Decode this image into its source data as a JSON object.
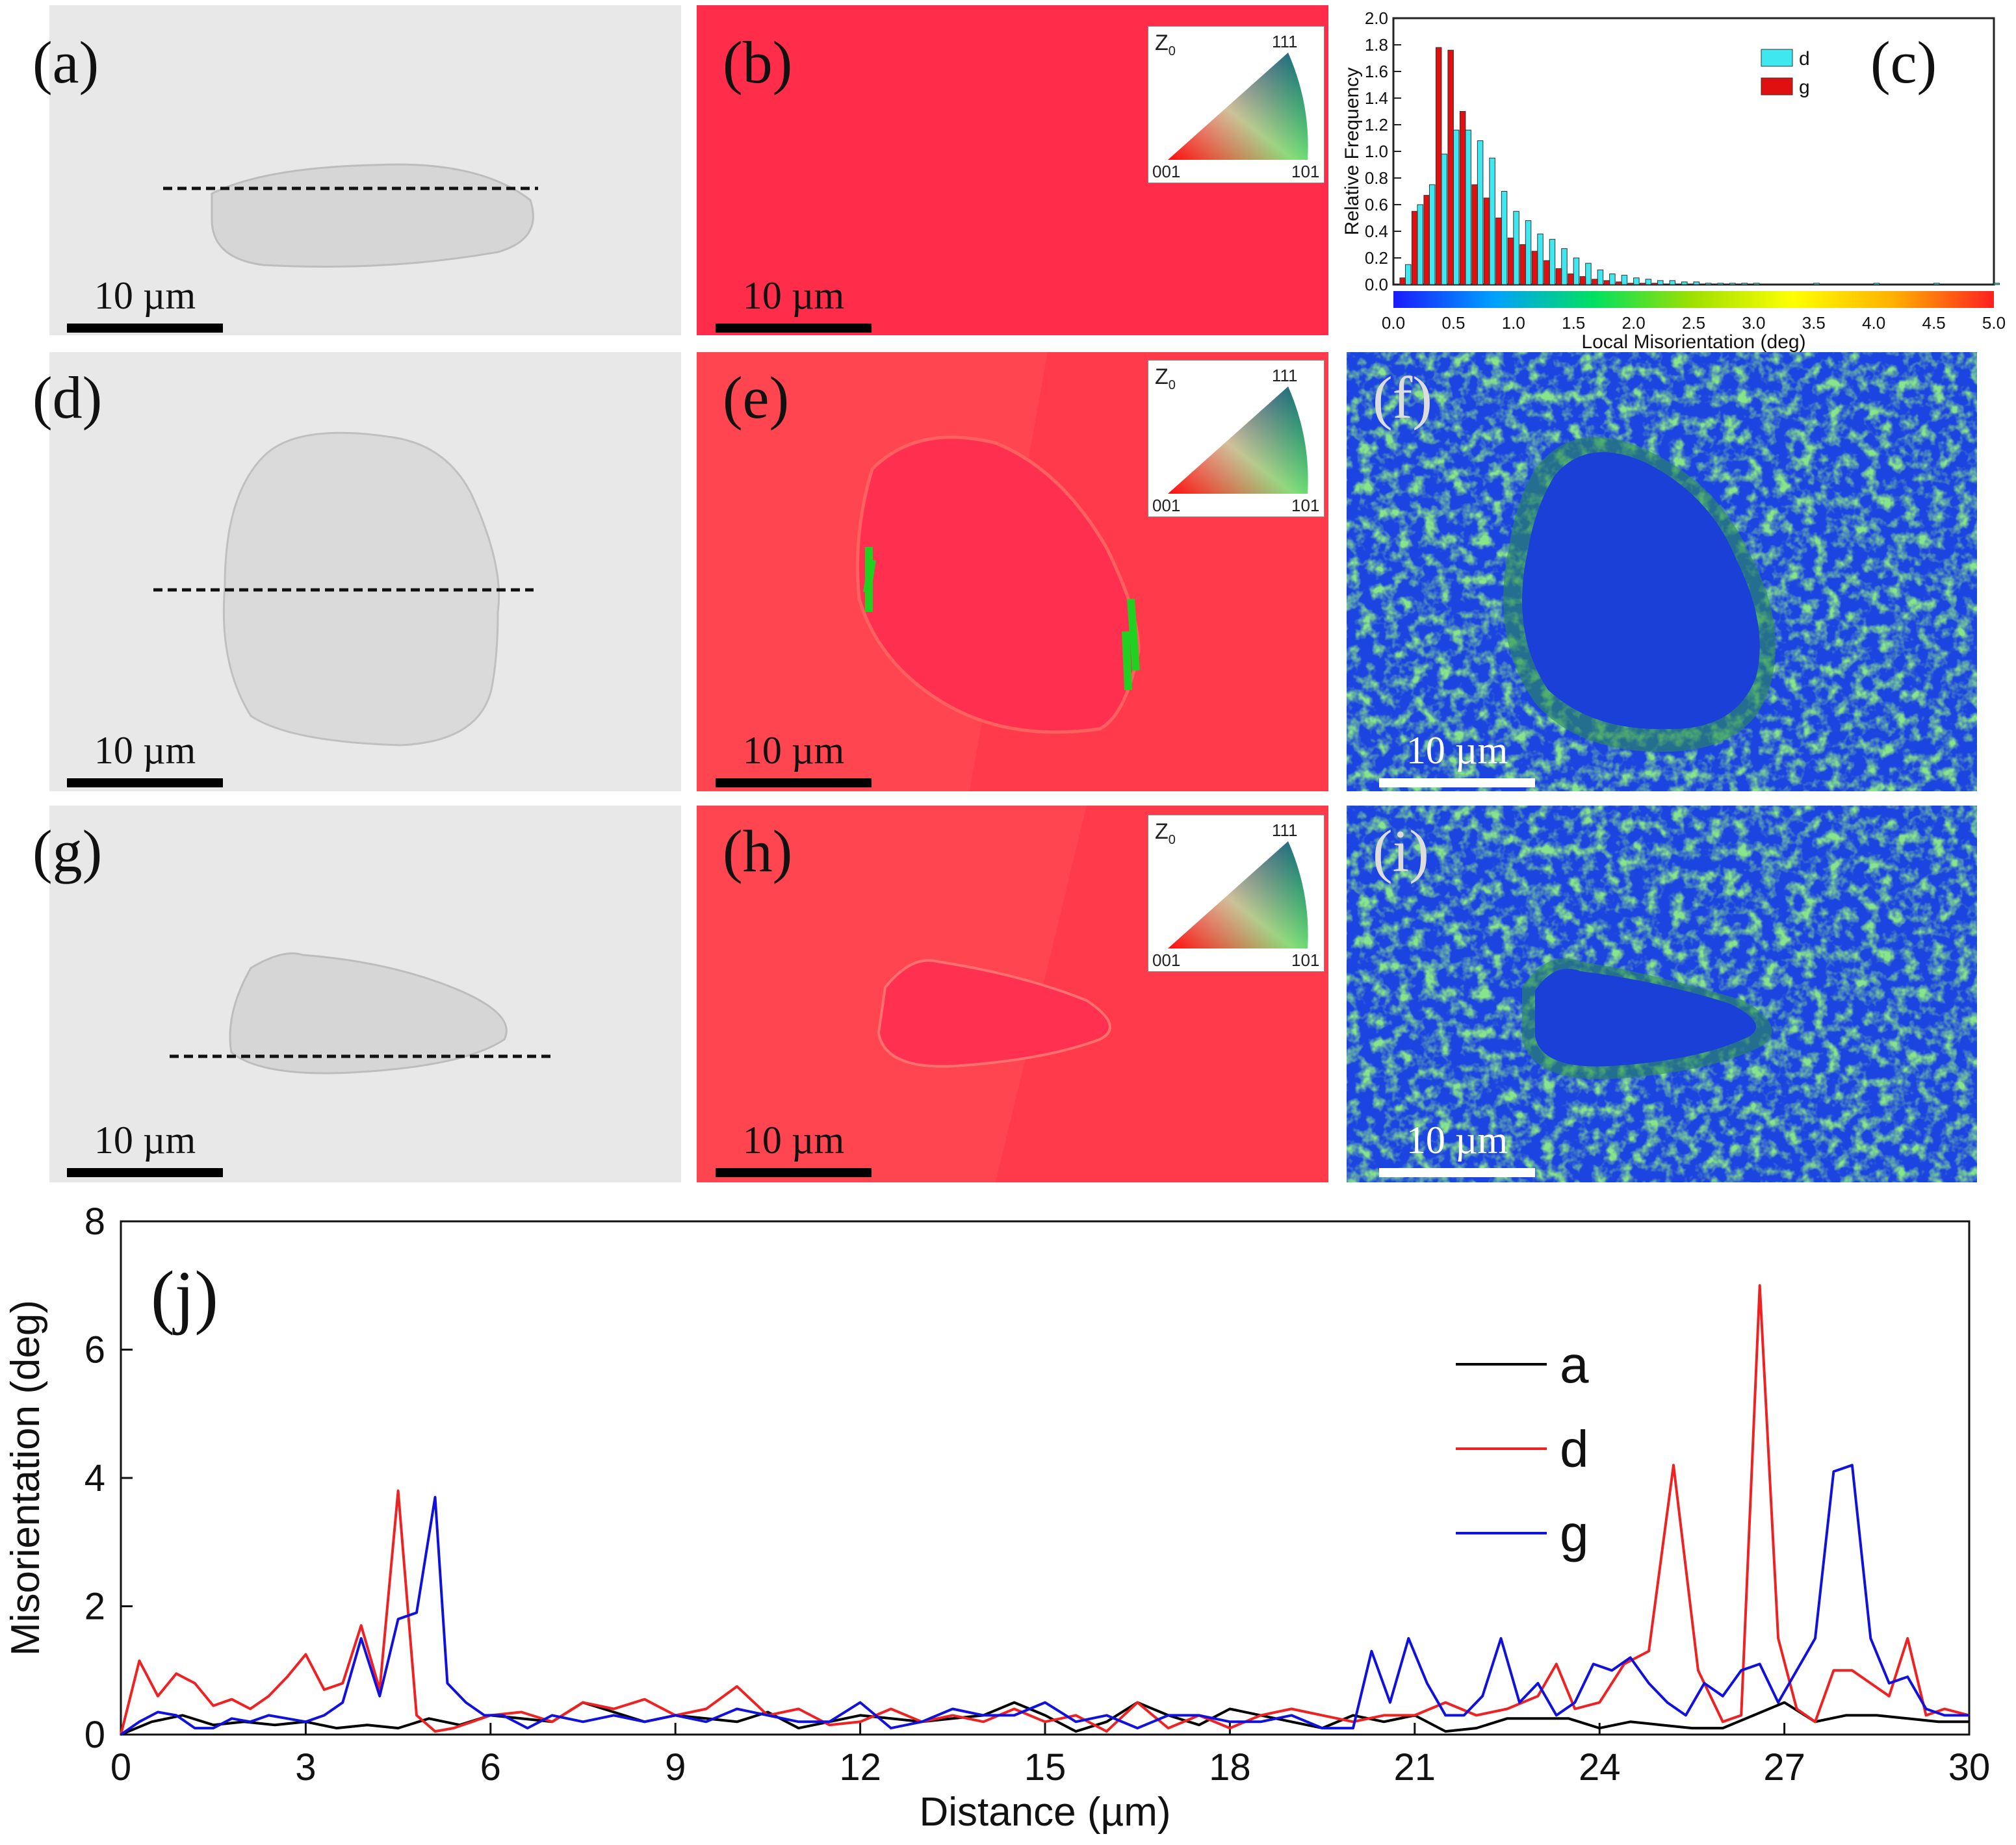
{
  "panels": {
    "a": {
      "label": "(a)",
      "scale": "10 µm"
    },
    "b": {
      "label": "(b)",
      "scale": "10 µm"
    },
    "c": {
      "label": "(c)"
    },
    "d": {
      "label": "(d)",
      "scale": "10 µm"
    },
    "e": {
      "label": "(e)",
      "scale": "10 µm"
    },
    "f": {
      "label": "(f)",
      "scale": "10 µm"
    },
    "g": {
      "label": "(g)",
      "scale": "10 µm"
    },
    "h": {
      "label": "(h)",
      "scale": "10 µm"
    },
    "i": {
      "label": "(i)",
      "scale": "10 µm"
    },
    "j": {
      "label": "(j)"
    }
  },
  "ipf_key": {
    "z_label": "Z",
    "z_sub": "0",
    "v111": "111",
    "v001": "001",
    "v101": "101"
  },
  "colors": {
    "sem_bg": "#e6e6e6",
    "ipf_red": "#ff3d52",
    "kam_blue": "#1c44e0",
    "kam_green": "#3fc23c",
    "hist_d": "#3ee8f0",
    "hist_g": "#e01010",
    "line_a": "#000000",
    "line_d": "#ee2222",
    "line_g": "#1111dd"
  },
  "chart_data": [
    {
      "type": "bar",
      "panel": "c",
      "xlabel": "Local Misorientation (deg)",
      "ylabel": "Relative Frequency",
      "xlim": [
        0.0,
        5.0
      ],
      "ylim": [
        0.0,
        2.0
      ],
      "xticks": [
        "0.0",
        "0.5",
        "1.0",
        "1.5",
        "2.0",
        "2.5",
        "3.0",
        "3.5",
        "4.0",
        "4.5",
        "5.0"
      ],
      "yticks": [
        "0.0",
        "0.2",
        "0.4",
        "0.6",
        "0.8",
        "1.0",
        "1.2",
        "1.4",
        "1.6",
        "1.8",
        "2.0"
      ],
      "bin_centers": [
        0.1,
        0.2,
        0.3,
        0.4,
        0.5,
        0.6,
        0.7,
        0.8,
        0.9,
        1.0,
        1.1,
        1.2,
        1.3,
        1.4,
        1.5,
        1.6,
        1.7,
        1.8,
        1.9,
        2.0,
        2.1,
        2.2,
        2.3,
        2.4,
        2.5,
        2.6,
        2.7,
        2.8,
        2.9,
        3.0,
        3.5,
        4.0,
        4.5,
        5.0
      ],
      "series": [
        {
          "name": "d",
          "values": [
            0.15,
            0.6,
            0.75,
            0.98,
            1.16,
            1.16,
            1.08,
            0.95,
            0.7,
            0.55,
            0.48,
            0.38,
            0.34,
            0.27,
            0.2,
            0.16,
            0.11,
            0.08,
            0.07,
            0.05,
            0.04,
            0.03,
            0.03,
            0.02,
            0.02,
            0.01,
            0.01,
            0.01,
            0.01,
            0.01,
            0.01,
            0.01,
            0.01,
            0.01
          ]
        },
        {
          "name": "g",
          "values": [
            0.05,
            0.55,
            0.67,
            1.78,
            1.76,
            1.3,
            0.75,
            0.65,
            0.5,
            0.35,
            0.3,
            0.25,
            0.18,
            0.12,
            0.08,
            0.06,
            0.04,
            0.03,
            0.02,
            0.01,
            0.01,
            0.01,
            0.0,
            0.0,
            0.0,
            0.0,
            0.0,
            0.0,
            0.0,
            0.0,
            0.0,
            0.0,
            0.0,
            0.0
          ]
        }
      ],
      "colorbar": [
        "#1a1aff",
        "#00a0ff",
        "#00e060",
        "#a0e000",
        "#ffff00",
        "#ffb000",
        "#ff2020"
      ]
    },
    {
      "type": "line",
      "panel": "j",
      "xlabel": "Distance (µm)",
      "ylabel": "Misorientation (deg)",
      "xlim": [
        0,
        30
      ],
      "ylim": [
        0,
        8
      ],
      "xticks": [
        "0",
        "3",
        "6",
        "9",
        "12",
        "15",
        "18",
        "21",
        "24",
        "27",
        "30"
      ],
      "yticks": [
        "0",
        "2",
        "4",
        "6",
        "8"
      ],
      "series": [
        {
          "name": "a",
          "x": [
            0,
            0.5,
            1,
            1.5,
            2,
            2.5,
            3,
            3.5,
            4,
            4.5,
            5,
            5.5,
            6,
            6.5,
            7,
            7.5,
            8,
            8.5,
            9,
            9.5,
            10,
            10.5,
            11,
            11.5,
            12,
            12.5,
            13,
            13.5,
            14,
            14.5,
            15,
            15.5,
            16,
            16.5,
            17,
            17.5,
            18,
            18.5,
            19,
            19.5,
            20,
            20.5,
            21,
            21.5,
            22,
            22.5,
            23,
            23.5,
            24,
            24.5,
            25,
            25.5,
            26,
            26.5,
            27,
            27.5,
            28,
            28.5,
            29,
            29.5,
            30
          ],
          "y": [
            0,
            0.2,
            0.3,
            0.15,
            0.2,
            0.15,
            0.2,
            0.1,
            0.15,
            0.1,
            0.25,
            0.15,
            0.3,
            0.25,
            0.2,
            0.5,
            0.35,
            0.2,
            0.3,
            0.25,
            0.2,
            0.35,
            0.1,
            0.2,
            0.3,
            0.25,
            0.2,
            0.25,
            0.3,
            0.5,
            0.3,
            0.05,
            0.2,
            0.5,
            0.3,
            0.15,
            0.4,
            0.3,
            0.2,
            0.1,
            0.3,
            0.2,
            0.3,
            0.05,
            0.1,
            0.25,
            0.25,
            0.25,
            0.1,
            0.2,
            0.15,
            0.1,
            0.1,
            0.3,
            0.5,
            0.2,
            0.3,
            0.3,
            0.25,
            0.2,
            0.2
          ]
        },
        {
          "name": "d",
          "x": [
            0,
            0.3,
            0.6,
            0.9,
            1.2,
            1.5,
            1.8,
            2.1,
            2.4,
            2.7,
            3,
            3.3,
            3.6,
            3.9,
            4.2,
            4.5,
            4.8,
            5.1,
            5.4,
            5.7,
            6,
            6.5,
            7,
            7.5,
            8,
            8.5,
            9,
            9.5,
            10,
            10.5,
            11,
            11.5,
            12,
            12.5,
            13,
            13.5,
            14,
            14.5,
            15,
            15.5,
            16,
            16.5,
            17,
            17.5,
            18,
            18.5,
            19,
            19.5,
            20,
            20.5,
            21,
            21.5,
            22,
            22.5,
            23,
            23.3,
            23.6,
            24,
            24.4,
            24.8,
            25.2,
            25.6,
            26,
            26.3,
            26.6,
            26.9,
            27.2,
            27.5,
            27.8,
            28.1,
            28.4,
            28.7,
            29,
            29.3,
            29.6,
            30
          ],
          "y": [
            0,
            1.15,
            0.6,
            0.95,
            0.8,
            0.45,
            0.55,
            0.4,
            0.6,
            0.9,
            1.25,
            0.7,
            0.8,
            1.7,
            0.7,
            3.8,
            0.3,
            0.05,
            0.1,
            0.2,
            0.3,
            0.35,
            0.2,
            0.5,
            0.4,
            0.55,
            0.3,
            0.4,
            0.75,
            0.3,
            0.4,
            0.15,
            0.2,
            0.4,
            0.2,
            0.3,
            0.2,
            0.4,
            0.2,
            0.3,
            0.05,
            0.5,
            0.1,
            0.3,
            0.1,
            0.3,
            0.4,
            0.3,
            0.2,
            0.3,
            0.3,
            0.5,
            0.3,
            0.4,
            0.6,
            1.1,
            0.4,
            0.5,
            1.1,
            1.3,
            4.2,
            1.0,
            0.2,
            0.3,
            7.0,
            1.5,
            0.4,
            0.2,
            1.0,
            1.0,
            0.8,
            0.6,
            1.5,
            0.3,
            0.4,
            0.3
          ]
        },
        {
          "name": "g",
          "x": [
            0,
            0.3,
            0.6,
            0.9,
            1.2,
            1.5,
            1.8,
            2.1,
            2.4,
            2.7,
            3,
            3.3,
            3.6,
            3.9,
            4.2,
            4.5,
            4.8,
            5.1,
            5.3,
            5.6,
            5.9,
            6.2,
            6.6,
            7,
            7.5,
            8,
            8.5,
            9,
            9.5,
            10,
            10.5,
            11,
            11.5,
            12,
            12.5,
            13,
            13.5,
            14,
            14.5,
            15,
            15.5,
            16,
            16.5,
            17,
            17.5,
            18,
            18.5,
            19,
            19.5,
            20,
            20.3,
            20.6,
            20.9,
            21.2,
            21.5,
            21.8,
            22.1,
            22.4,
            22.7,
            23,
            23.3,
            23.6,
            23.9,
            24.2,
            24.5,
            24.8,
            25.1,
            25.4,
            25.7,
            26,
            26.3,
            26.6,
            26.9,
            27.2,
            27.5,
            27.8,
            28.1,
            28.4,
            28.7,
            29,
            29.3,
            29.6,
            30
          ],
          "y": [
            0,
            0.2,
            0.35,
            0.3,
            0.1,
            0.1,
            0.25,
            0.2,
            0.3,
            0.25,
            0.2,
            0.3,
            0.5,
            1.5,
            0.6,
            1.8,
            1.9,
            3.7,
            0.8,
            0.5,
            0.3,
            0.3,
            0.1,
            0.3,
            0.2,
            0.3,
            0.2,
            0.3,
            0.2,
            0.4,
            0.3,
            0.2,
            0.2,
            0.5,
            0.1,
            0.2,
            0.4,
            0.3,
            0.3,
            0.5,
            0.2,
            0.3,
            0.1,
            0.3,
            0.3,
            0.2,
            0.2,
            0.3,
            0.1,
            0.1,
            1.3,
            0.5,
            1.5,
            0.8,
            0.3,
            0.3,
            0.6,
            1.5,
            0.5,
            0.8,
            0.3,
            0.5,
            1.1,
            1.0,
            1.2,
            0.8,
            0.5,
            0.3,
            0.8,
            0.6,
            1.0,
            1.1,
            0.5,
            1.0,
            1.5,
            4.1,
            4.2,
            1.5,
            0.8,
            0.9,
            0.4,
            0.3,
            0.3
          ]
        }
      ]
    }
  ]
}
